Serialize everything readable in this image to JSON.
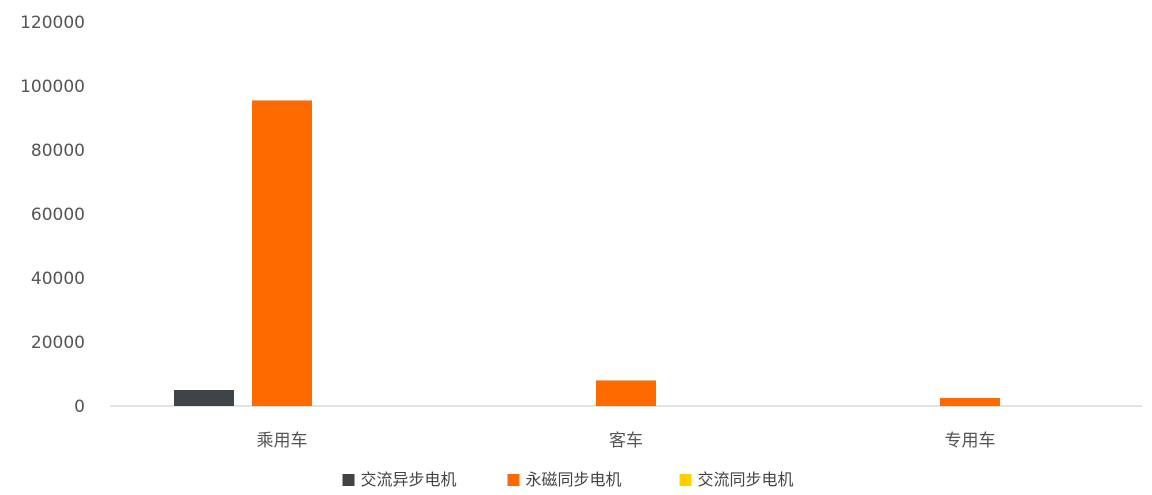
{
  "chart_data": {
    "type": "bar",
    "categories": [
      "乘用车",
      "客车",
      "专用车"
    ],
    "series": [
      {
        "name": "交流异步电机",
        "color": "#3f4448",
        "values": [
          5000,
          0,
          0
        ]
      },
      {
        "name": "永磁同步电机",
        "color": "#ff6a00",
        "values": [
          95500,
          8000,
          2500
        ]
      },
      {
        "name": "交流同步电机",
        "color": "#ffd000",
        "values": [
          0,
          0,
          0
        ]
      }
    ],
    "yticks": [
      "120000",
      "100000",
      "80000",
      "60000",
      "40000",
      "20000",
      "0"
    ],
    "ylim": [
      0,
      120000
    ],
    "grid": false,
    "legend_position": "bottom"
  }
}
